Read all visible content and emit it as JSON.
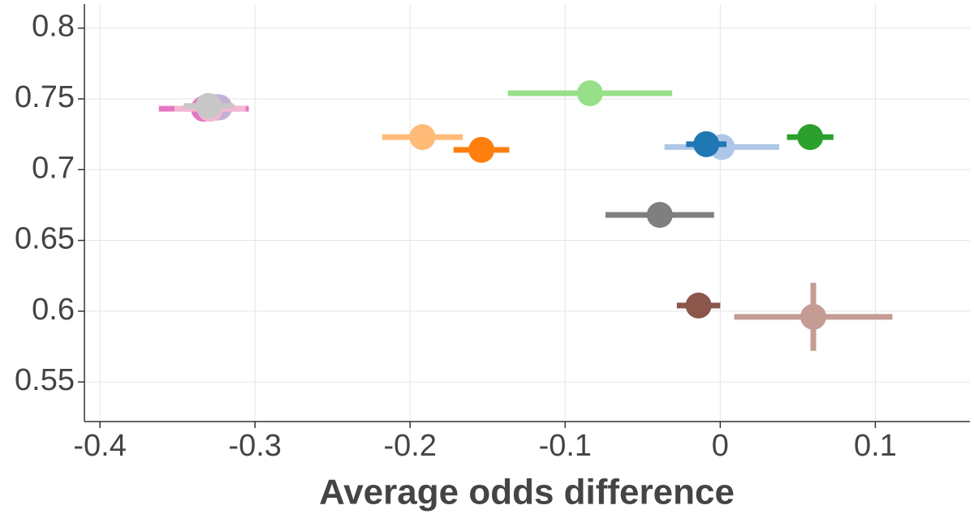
{
  "chart_data": {
    "type": "scatter",
    "xlabel": "Average odds difference",
    "xlim": [
      -0.41,
      0.161
    ],
    "ylim": [
      0.522,
      0.817
    ],
    "xticks": [
      -0.4,
      -0.3,
      -0.2,
      -0.1,
      0,
      0.1
    ],
    "yticks": [
      0.55,
      0.6,
      0.65,
      0.7,
      0.75,
      0.8
    ],
    "grid": true,
    "points": [
      {
        "color": "#e377c2",
        "x": -0.333,
        "y": 0.743,
        "xerr": 0.029
      },
      {
        "color": "#9467bd",
        "x": -0.325,
        "y": 0.744,
        "xerr": 0.01
      },
      {
        "color": "#c5b0d5",
        "x": -0.323,
        "y": 0.744,
        "xerr": 0.01
      },
      {
        "color": "#f7b6d2",
        "x": -0.329,
        "y": 0.743,
        "xerr": 0.023
      },
      {
        "color": "#c7c7c7",
        "x": -0.33,
        "y": 0.745,
        "xerr": 0.016
      },
      {
        "color": "#98df8a",
        "x": -0.084,
        "y": 0.754,
        "xerr": 0.053
      },
      {
        "color": "#ffbb78",
        "x": -0.192,
        "y": 0.723,
        "xerr": 0.026
      },
      {
        "color": "#ff7f0e",
        "x": -0.154,
        "y": 0.714,
        "xerr": 0.018
      },
      {
        "color": "#aec7e8",
        "x": 0.001,
        "y": 0.716,
        "xerr": 0.037
      },
      {
        "color": "#1f77b4",
        "x": -0.009,
        "y": 0.718,
        "xerr": 0.013
      },
      {
        "color": "#2ca02c",
        "x": 0.058,
        "y": 0.723,
        "xerr": 0.015
      },
      {
        "color": "#7f7f7f",
        "x": -0.039,
        "y": 0.668,
        "xerr": 0.035
      },
      {
        "color": "#8c564b",
        "x": -0.014,
        "y": 0.604,
        "xerr": 0.014
      },
      {
        "color": "#c49c94",
        "x": 0.06,
        "y": 0.596,
        "xerr": 0.051,
        "yerr": 0.024
      }
    ]
  }
}
